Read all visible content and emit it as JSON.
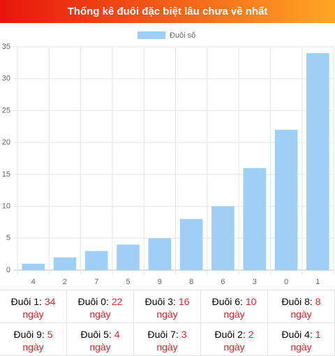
{
  "header": {
    "title": "Thống kê đuôi đặc biệt lâu chưa về nhất"
  },
  "chart_data": {
    "type": "bar",
    "legend": "Đuôi số",
    "categories": [
      "4",
      "2",
      "7",
      "5",
      "9",
      "8",
      "6",
      "3",
      "0",
      "1"
    ],
    "values": [
      1,
      2,
      3,
      4,
      5,
      8,
      10,
      16,
      22,
      34
    ],
    "color": "#9fcff5",
    "ylim": [
      0,
      35
    ],
    "yticks": [
      0,
      5,
      10,
      15,
      20,
      25,
      30,
      35
    ],
    "grid": true,
    "legend_position": "top"
  },
  "table": {
    "rows": [
      [
        {
          "label": "Đuôi 1:",
          "value": 34,
          "unit": "ngày"
        },
        {
          "label": "Đuôi 0:",
          "value": 22,
          "unit": "ngày"
        },
        {
          "label": "Đuôi 3:",
          "value": 16,
          "unit": "ngày"
        },
        {
          "label": "Đuôi 6:",
          "value": 10,
          "unit": "ngày"
        },
        {
          "label": "Đuôi 8:",
          "value": 8,
          "unit": "ngày"
        }
      ],
      [
        {
          "label": "Đuôi 9:",
          "value": 5,
          "unit": "ngày"
        },
        {
          "label": "Đuôi 5:",
          "value": 4,
          "unit": "ngày"
        },
        {
          "label": "Đuôi 7:",
          "value": 3,
          "unit": "ngày"
        },
        {
          "label": "Đuôi 2:",
          "value": 2,
          "unit": "ngày"
        },
        {
          "label": "Đuôi 4:",
          "value": 1,
          "unit": "ngày"
        }
      ]
    ]
  }
}
